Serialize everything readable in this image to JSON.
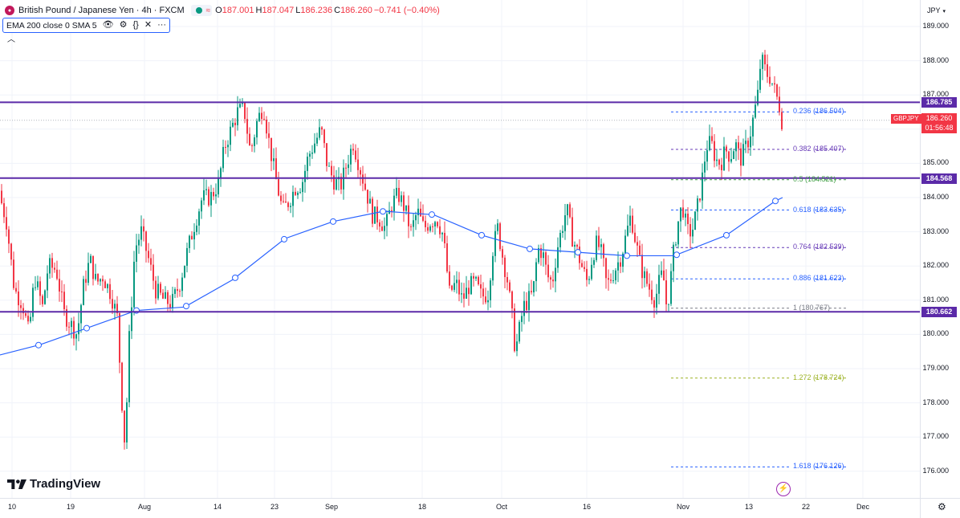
{
  "header": {
    "symbol_title": "British Pound / Japanese Yen · 4h · FXCM",
    "symbol_icon": "flag-icon",
    "ohlc": {
      "o_label": "O",
      "o": "187.001",
      "h_label": "H",
      "h": "187.047",
      "l_label": "L",
      "l": "186.236",
      "c_label": "C",
      "c": "186.260",
      "change": "−0.741 (−0.40%)"
    },
    "market_status_color": "#089981"
  },
  "indicator": {
    "label": "EMA 200 close 0 SMA 5"
  },
  "axis": {
    "currency": "JPY",
    "x_ticks": [
      "10",
      "19",
      "Aug",
      "14",
      "23",
      "Sep",
      "18",
      "Oct",
      "16",
      "Nov",
      "13",
      "22",
      "Dec"
    ]
  },
  "price_tag": {
    "symbol": "GBPJPY",
    "price": "186.260",
    "countdown": "01:56:48"
  },
  "horizontal_levels": [
    {
      "price": "186.785",
      "value": 186.785
    },
    {
      "price": "184.568",
      "value": 184.568
    },
    {
      "price": "180.662",
      "value": 180.662
    }
  ],
  "fib_levels": [
    {
      "label": "0.236 (186.504)",
      "value": 186.504,
      "color": "#2962ff"
    },
    {
      "label": "0.382 (185.407)",
      "value": 185.407,
      "color": "#673ab7"
    },
    {
      "label": "0.5 (184.521)",
      "value": 184.521,
      "color": "#43a047"
    },
    {
      "label": "0.618 (183.635)",
      "value": 183.635,
      "color": "#2962ff"
    },
    {
      "label": "0.764 (182.539)",
      "value": 182.539,
      "color": "#673ab7"
    },
    {
      "label": "0.886 (181.623)",
      "value": 181.623,
      "color": "#2962ff"
    },
    {
      "label": "1 (180.767)",
      "value": 180.767,
      "color": "#787b86"
    },
    {
      "label": "1.272 (178.724)",
      "value": 178.724,
      "color": "#9cb224"
    },
    {
      "label": "1.618 (176.126)",
      "value": 176.126,
      "color": "#2962ff"
    }
  ],
  "branding": {
    "logo_text": "TradingView"
  },
  "colors": {
    "up": "#089981",
    "down": "#f23645",
    "ema": "#2962ff",
    "level": "#5b2aa8"
  },
  "chart_data": {
    "type": "candlestick",
    "title": "British Pound / Japanese Yen · 4h · FXCM",
    "y_ticks": [
      189,
      188,
      187,
      186,
      185,
      184,
      183,
      182,
      181,
      180,
      179,
      178,
      177,
      176
    ],
    "ylim": [
      175.6,
      189.3
    ],
    "x_ticks": [
      "10",
      "19",
      "Aug",
      "14",
      "23",
      "Sep",
      "18",
      "Oct",
      "16",
      "Nov",
      "13",
      "22",
      "Dec"
    ],
    "grid": true,
    "price_path": [
      [
        0,
        184.2
      ],
      [
        10,
        183.3
      ],
      [
        20,
        181.3
      ],
      [
        30,
        180.9
      ],
      [
        38,
        180.0
      ],
      [
        45,
        181.7
      ],
      [
        55,
        180.8
      ],
      [
        62,
        182.0
      ],
      [
        72,
        181.9
      ],
      [
        82,
        180.6
      ],
      [
        90,
        180.3
      ],
      [
        98,
        180.0
      ],
      [
        106,
        181.4
      ],
      [
        114,
        182.2
      ],
      [
        122,
        181.5
      ],
      [
        130,
        181.7
      ],
      [
        140,
        181.2
      ],
      [
        148,
        180.5
      ],
      [
        154,
        178.0
      ],
      [
        158,
        176.6
      ],
      [
        162,
        179.5
      ],
      [
        166,
        181.0
      ],
      [
        170,
        182.5
      ],
      [
        178,
        183.0
      ],
      [
        186,
        182.3
      ],
      [
        196,
        181.3
      ],
      [
        206,
        181.0
      ],
      [
        216,
        180.9
      ],
      [
        226,
        181.5
      ],
      [
        234,
        182.3
      ],
      [
        244,
        183.2
      ],
      [
        254,
        184.0
      ],
      [
        264,
        184.0
      ],
      [
        274,
        184.4
      ],
      [
        282,
        185.5
      ],
      [
        290,
        186.0
      ],
      [
        298,
        186.5
      ],
      [
        306,
        186.6
      ],
      [
        314,
        185.3
      ],
      [
        322,
        186.2
      ],
      [
        330,
        186.7
      ],
      [
        338,
        185.5
      ],
      [
        346,
        184.5
      ],
      [
        354,
        183.6
      ],
      [
        362,
        183.9
      ],
      [
        370,
        184.3
      ],
      [
        378,
        184.4
      ],
      [
        386,
        185.2
      ],
      [
        394,
        185.6
      ],
      [
        402,
        186.0
      ],
      [
        410,
        184.9
      ],
      [
        418,
        184.5
      ],
      [
        426,
        184.3
      ],
      [
        434,
        185.0
      ],
      [
        442,
        185.6
      ],
      [
        450,
        184.9
      ],
      [
        458,
        184.2
      ],
      [
        466,
        183.5
      ],
      [
        474,
        183.4
      ],
      [
        482,
        183.1
      ],
      [
        490,
        183.8
      ],
      [
        498,
        184.1
      ],
      [
        506,
        183.7
      ],
      [
        514,
        183.0
      ],
      [
        522,
        183.6
      ],
      [
        530,
        183.1
      ],
      [
        538,
        183.3
      ],
      [
        546,
        183.4
      ],
      [
        554,
        182.9
      ],
      [
        562,
        181.2
      ],
      [
        570,
        181.5
      ],
      [
        578,
        181.0
      ],
      [
        586,
        181.4
      ],
      [
        594,
        181.5
      ],
      [
        602,
        181.1
      ],
      [
        610,
        181.2
      ],
      [
        616,
        182.5
      ],
      [
        622,
        183.1
      ],
      [
        628,
        182.3
      ],
      [
        634,
        181.6
      ],
      [
        640,
        180.5
      ],
      [
        644,
        179.5
      ],
      [
        648,
        180.0
      ],
      [
        654,
        180.8
      ],
      [
        660,
        181.0
      ],
      [
        666,
        181.2
      ],
      [
        672,
        182.5
      ],
      [
        678,
        182.4
      ],
      [
        684,
        181.7
      ],
      [
        690,
        181.5
      ],
      [
        696,
        182.5
      ],
      [
        702,
        183.1
      ],
      [
        708,
        183.7
      ],
      [
        714,
        182.9
      ],
      [
        720,
        182.5
      ],
      [
        728,
        181.9
      ],
      [
        734,
        181.5
      ],
      [
        740,
        182.3
      ],
      [
        746,
        182.7
      ],
      [
        752,
        182.3
      ],
      [
        758,
        181.4
      ],
      [
        764,
        181.7
      ],
      [
        770,
        182.0
      ],
      [
        776,
        182.3
      ],
      [
        782,
        182.9
      ],
      [
        788,
        183.5
      ],
      [
        794,
        182.7
      ],
      [
        800,
        182.0
      ],
      [
        806,
        181.6
      ],
      [
        812,
        181.3
      ],
      [
        818,
        181.0
      ],
      [
        824,
        181.6
      ],
      [
        828,
        181.8
      ],
      [
        832,
        180.9
      ],
      [
        836,
        181.2
      ],
      [
        840,
        182.2
      ],
      [
        846,
        183.2
      ],
      [
        852,
        183.8
      ],
      [
        858,
        183.0
      ],
      [
        864,
        183.0
      ],
      [
        870,
        183.6
      ],
      [
        876,
        184.4
      ],
      [
        882,
        185.5
      ],
      [
        888,
        185.6
      ],
      [
        894,
        185.1
      ],
      [
        900,
        185.0
      ],
      [
        906,
        185.4
      ],
      [
        912,
        185.2
      ],
      [
        918,
        185.6
      ],
      [
        924,
        185.1
      ],
      [
        930,
        185.4
      ],
      [
        936,
        185.8
      ],
      [
        942,
        186.5
      ],
      [
        946,
        187.0
      ],
      [
        950,
        188.1
      ],
      [
        954,
        187.8
      ],
      [
        958,
        187.6
      ],
      [
        962,
        187.5
      ],
      [
        966,
        187.2
      ],
      [
        970,
        186.9
      ],
      [
        974,
        186.6
      ],
      [
        976,
        186.26
      ]
    ],
    "ema": [
      [
        0,
        179.4
      ],
      [
        50,
        179.7
      ],
      [
        110,
        180.2
      ],
      [
        170,
        180.7
      ],
      [
        230,
        180.8
      ],
      [
        290,
        181.6
      ],
      [
        355,
        182.8
      ],
      [
        415,
        183.3
      ],
      [
        478,
        183.6
      ],
      [
        540,
        183.5
      ],
      [
        600,
        182.9
      ],
      [
        660,
        182.5
      ],
      [
        720,
        182.4
      ],
      [
        780,
        182.3
      ],
      [
        840,
        182.3
      ],
      [
        905,
        182.9
      ],
      [
        966,
        183.9
      ],
      [
        975,
        184.0
      ]
    ],
    "ema_markers": [
      48,
      108,
      170,
      232,
      293,
      354,
      415,
      477,
      538,
      600,
      660,
      720,
      781,
      843,
      905,
      966
    ]
  }
}
